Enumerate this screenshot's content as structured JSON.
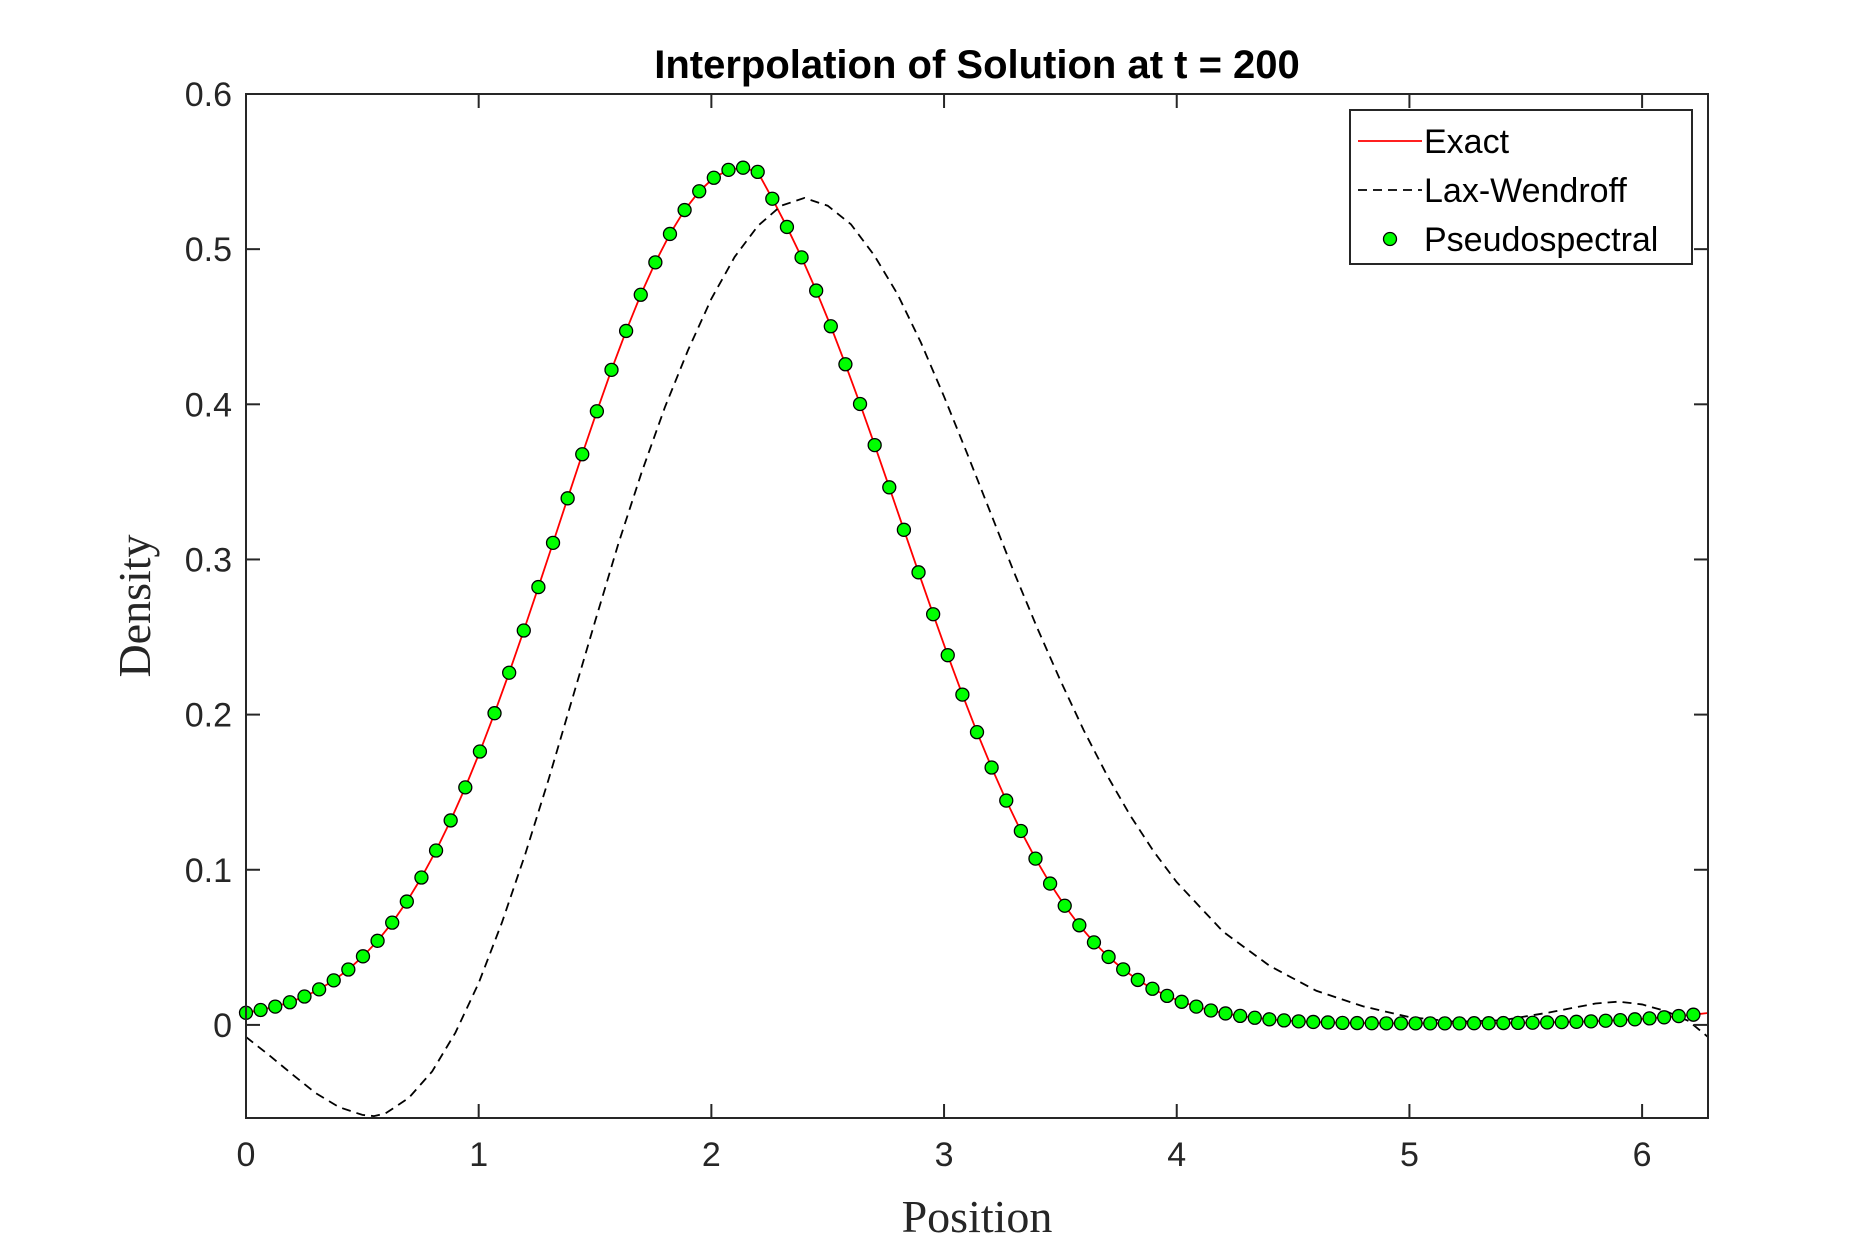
{
  "chart_data": {
    "type": "line",
    "title": "Interpolation of Solution at t = 200",
    "xlabel": "Position",
    "ylabel": "Density",
    "xlim": [
      0,
      6.2832
    ],
    "ylim": [
      -0.06,
      0.6
    ],
    "xticks": [
      0,
      1,
      2,
      3,
      4,
      5,
      6
    ],
    "yticks": [
      0,
      0.1,
      0.2,
      0.3,
      0.4,
      0.5,
      0.6
    ],
    "xtick_labels": [
      "0",
      "1",
      "2",
      "3",
      "4",
      "5",
      "6"
    ],
    "ytick_labels": [
      "0",
      "0.1",
      "0.2",
      "0.3",
      "0.4",
      "0.5",
      "0.6"
    ],
    "grid": false,
    "legend_position": "top-right",
    "series": [
      {
        "name": "Exact",
        "style": "solid-line",
        "color": "#ff0000",
        "x": [
          0,
          0.0628,
          0.1257,
          0.1885,
          0.2513,
          0.3142,
          0.377,
          0.4398,
          0.5027,
          0.5655,
          0.6283,
          0.6912,
          0.754,
          0.8168,
          0.8796,
          0.9425,
          1.0053,
          1.0681,
          1.131,
          1.1938,
          1.2566,
          1.3195,
          1.3823,
          1.4451,
          1.508,
          1.5708,
          1.6336,
          1.6965,
          1.7593,
          1.8221,
          1.885,
          1.9478,
          2.0106,
          2.0735,
          2.1363,
          2.1991,
          2.2619,
          2.3248,
          2.3876,
          2.4504,
          2.5133,
          2.5761,
          2.6389,
          2.7018,
          2.7646,
          2.8274,
          2.8903,
          2.9531,
          3.0159,
          3.0788,
          3.1416,
          3.2044,
          3.2673,
          3.3301,
          3.3929,
          3.4558,
          3.5186,
          3.5814,
          3.6442,
          3.7071,
          3.7699,
          3.8327,
          3.8956,
          3.9584,
          4.0212,
          4.0841,
          4.1469,
          4.2097,
          4.2726,
          4.3354,
          4.3982,
          4.4611,
          4.5239,
          4.5867,
          4.6496,
          4.7124,
          4.7752,
          4.8381,
          4.9009,
          4.9637,
          5.0265,
          5.0894,
          5.1522,
          5.215,
          5.2779,
          5.3407,
          5.4035,
          5.4664,
          5.5292,
          5.592,
          5.6549,
          5.7177,
          5.7805,
          5.8434,
          5.9062,
          5.969,
          6.0319,
          6.0947,
          6.1575,
          6.2204,
          6.2832
        ],
        "y": [
          0.0078,
          0.0096,
          0.0118,
          0.0146,
          0.0183,
          0.0229,
          0.0287,
          0.0357,
          0.0442,
          0.0542,
          0.0659,
          0.0795,
          0.095,
          0.1124,
          0.1318,
          0.1531,
          0.1762,
          0.2009,
          0.227,
          0.2542,
          0.2822,
          0.3107,
          0.3394,
          0.3678,
          0.3955,
          0.4222,
          0.4473,
          0.4706,
          0.4915,
          0.5098,
          0.5252,
          0.5373,
          0.546,
          0.5511,
          0.5525,
          0.5498,
          0.5325,
          0.5143,
          0.4947,
          0.4733,
          0.4503,
          0.4258,
          0.4002,
          0.3737,
          0.3465,
          0.3191,
          0.2917,
          0.2647,
          0.2383,
          0.2129,
          0.1887,
          0.1659,
          0.1446,
          0.125,
          0.1072,
          0.0911,
          0.0768,
          0.0642,
          0.0532,
          0.0438,
          0.0358,
          0.029,
          0.0233,
          0.0187,
          0.0149,
          0.0118,
          0.0093,
          0.0074,
          0.0058,
          0.0046,
          0.0036,
          0.0029,
          0.0023,
          0.0019,
          0.0016,
          0.0013,
          0.0012,
          0.0011,
          0.001,
          0.001,
          0.001,
          0.001,
          0.001,
          0.001,
          0.0011,
          0.0011,
          0.0012,
          0.0013,
          0.0014,
          0.0016,
          0.0018,
          0.002,
          0.0023,
          0.0027,
          0.0031,
          0.0036,
          0.0042,
          0.0049,
          0.0057,
          0.0066,
          0.0077
        ]
      },
      {
        "name": "Lax-Wendroff",
        "style": "dashed-line",
        "color": "#000000",
        "x": [
          0,
          0.1,
          0.2,
          0.3,
          0.4,
          0.5,
          0.55,
          0.6,
          0.7,
          0.8,
          0.9,
          1.0,
          1.1,
          1.2,
          1.3,
          1.4,
          1.5,
          1.6,
          1.7,
          1.8,
          1.9,
          2.0,
          2.1,
          2.2,
          2.3,
          2.4,
          2.5,
          2.6,
          2.7,
          2.8,
          2.9,
          3.0,
          3.1,
          3.2,
          3.3,
          3.4,
          3.5,
          3.6,
          3.7,
          3.8,
          3.9,
          4.0,
          4.2,
          4.4,
          4.6,
          4.8,
          5.0,
          5.2,
          5.4,
          5.6,
          5.8,
          5.9,
          6.0,
          6.1,
          6.2,
          6.2832
        ],
        "y": [
          -0.0078,
          -0.0196,
          -0.032,
          -0.044,
          -0.053,
          -0.058,
          -0.0588,
          -0.057,
          -0.047,
          -0.03,
          -0.005,
          0.027,
          0.066,
          0.11,
          0.158,
          0.209,
          0.26,
          0.31,
          0.356,
          0.398,
          0.435,
          0.468,
          0.495,
          0.515,
          0.528,
          0.533,
          0.528,
          0.516,
          0.496,
          0.471,
          0.44,
          0.405,
          0.368,
          0.33,
          0.292,
          0.256,
          0.222,
          0.19,
          0.161,
          0.135,
          0.112,
          0.092,
          0.06,
          0.038,
          0.022,
          0.012,
          0.005,
          0.002,
          0.003,
          0.008,
          0.0138,
          0.015,
          0.0132,
          0.009,
          0.0025,
          -0.0078
        ]
      },
      {
        "name": "Pseudospectral",
        "style": "markers",
        "color": "#00ff00",
        "x": [
          0,
          0.0628,
          0.1257,
          0.1885,
          0.2513,
          0.3142,
          0.377,
          0.4398,
          0.5027,
          0.5655,
          0.6283,
          0.6912,
          0.754,
          0.8168,
          0.8796,
          0.9425,
          1.0053,
          1.0681,
          1.131,
          1.1938,
          1.2566,
          1.3195,
          1.3823,
          1.4451,
          1.508,
          1.5708,
          1.6336,
          1.6965,
          1.7593,
          1.8221,
          1.885,
          1.9478,
          2.0106,
          2.0735,
          2.1363,
          2.1991,
          2.2619,
          2.3248,
          2.3876,
          2.4504,
          2.5133,
          2.5761,
          2.6389,
          2.7018,
          2.7646,
          2.8274,
          2.8903,
          2.9531,
          3.0159,
          3.0788,
          3.1416,
          3.2044,
          3.2673,
          3.3301,
          3.3929,
          3.4558,
          3.5186,
          3.5814,
          3.6442,
          3.7071,
          3.7699,
          3.8327,
          3.8956,
          3.9584,
          4.0212,
          4.0841,
          4.1469,
          4.2097,
          4.2726,
          4.3354,
          4.3982,
          4.4611,
          4.5239,
          4.5867,
          4.6496,
          4.7124,
          4.7752,
          4.8381,
          4.9009,
          4.9637,
          5.0265,
          5.0894,
          5.1522,
          5.215,
          5.2779,
          5.3407,
          5.4035,
          5.4664,
          5.5292,
          5.592,
          5.6549,
          5.7177,
          5.7805,
          5.8434,
          5.9062,
          5.969,
          6.0319,
          6.0947,
          6.1575,
          6.2204
        ],
        "y": [
          0.0078,
          0.0096,
          0.0118,
          0.0146,
          0.0183,
          0.0229,
          0.0287,
          0.0357,
          0.0442,
          0.0542,
          0.0659,
          0.0795,
          0.095,
          0.1124,
          0.1318,
          0.1531,
          0.1762,
          0.2009,
          0.227,
          0.2542,
          0.2822,
          0.3107,
          0.3394,
          0.3678,
          0.3955,
          0.4222,
          0.4473,
          0.4706,
          0.4915,
          0.5098,
          0.5252,
          0.5373,
          0.546,
          0.5511,
          0.5525,
          0.5498,
          0.5325,
          0.5143,
          0.4947,
          0.4733,
          0.4503,
          0.4258,
          0.4002,
          0.3737,
          0.3465,
          0.3191,
          0.2917,
          0.2647,
          0.2383,
          0.2129,
          0.1887,
          0.1659,
          0.1446,
          0.125,
          0.1072,
          0.0911,
          0.0768,
          0.0642,
          0.0532,
          0.0438,
          0.0358,
          0.029,
          0.0233,
          0.0187,
          0.0149,
          0.0118,
          0.0093,
          0.0074,
          0.0058,
          0.0046,
          0.0036,
          0.0029,
          0.0023,
          0.0019,
          0.0016,
          0.0013,
          0.0012,
          0.0011,
          0.001,
          0.001,
          0.001,
          0.001,
          0.001,
          0.001,
          0.0011,
          0.0011,
          0.0012,
          0.0013,
          0.0014,
          0.0016,
          0.0018,
          0.002,
          0.0023,
          0.0027,
          0.0031,
          0.0036,
          0.0042,
          0.0049,
          0.0057,
          0.0066
        ]
      }
    ]
  }
}
